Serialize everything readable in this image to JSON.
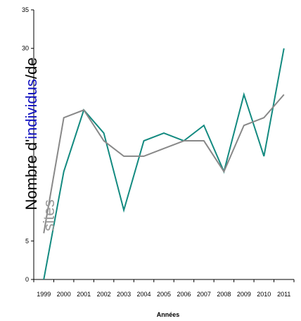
{
  "chart_data": {
    "type": "line",
    "title": "",
    "xlabel": "Années",
    "ylabel_parts": [
      {
        "text": "Nombre d'",
        "color": "#000000"
      },
      {
        "text": "individus",
        "color": "#1010c0"
      },
      {
        "text": "/de",
        "color": "#000000"
      }
    ],
    "ylabel_extra": {
      "text": "sites",
      "color": "#999999"
    },
    "x": [
      "1999",
      "2000",
      "2001",
      "2002",
      "2003",
      "2004",
      "2005",
      "2006",
      "2007",
      "2008",
      "2009",
      "2010",
      "2011"
    ],
    "ylim": [
      0,
      35
    ],
    "yticks": [
      0,
      5,
      30,
      35
    ],
    "grid": false,
    "series": [
      {
        "values": [
          0,
          14,
          22,
          19,
          9,
          18,
          19,
          18,
          20,
          14,
          24,
          16,
          30
        ],
        "color": "#138a80"
      },
      {
        "values": [
          6,
          21,
          22,
          18,
          16,
          16,
          17,
          18,
          18,
          14,
          20,
          21,
          24
        ],
        "color": "#888888"
      }
    ]
  }
}
